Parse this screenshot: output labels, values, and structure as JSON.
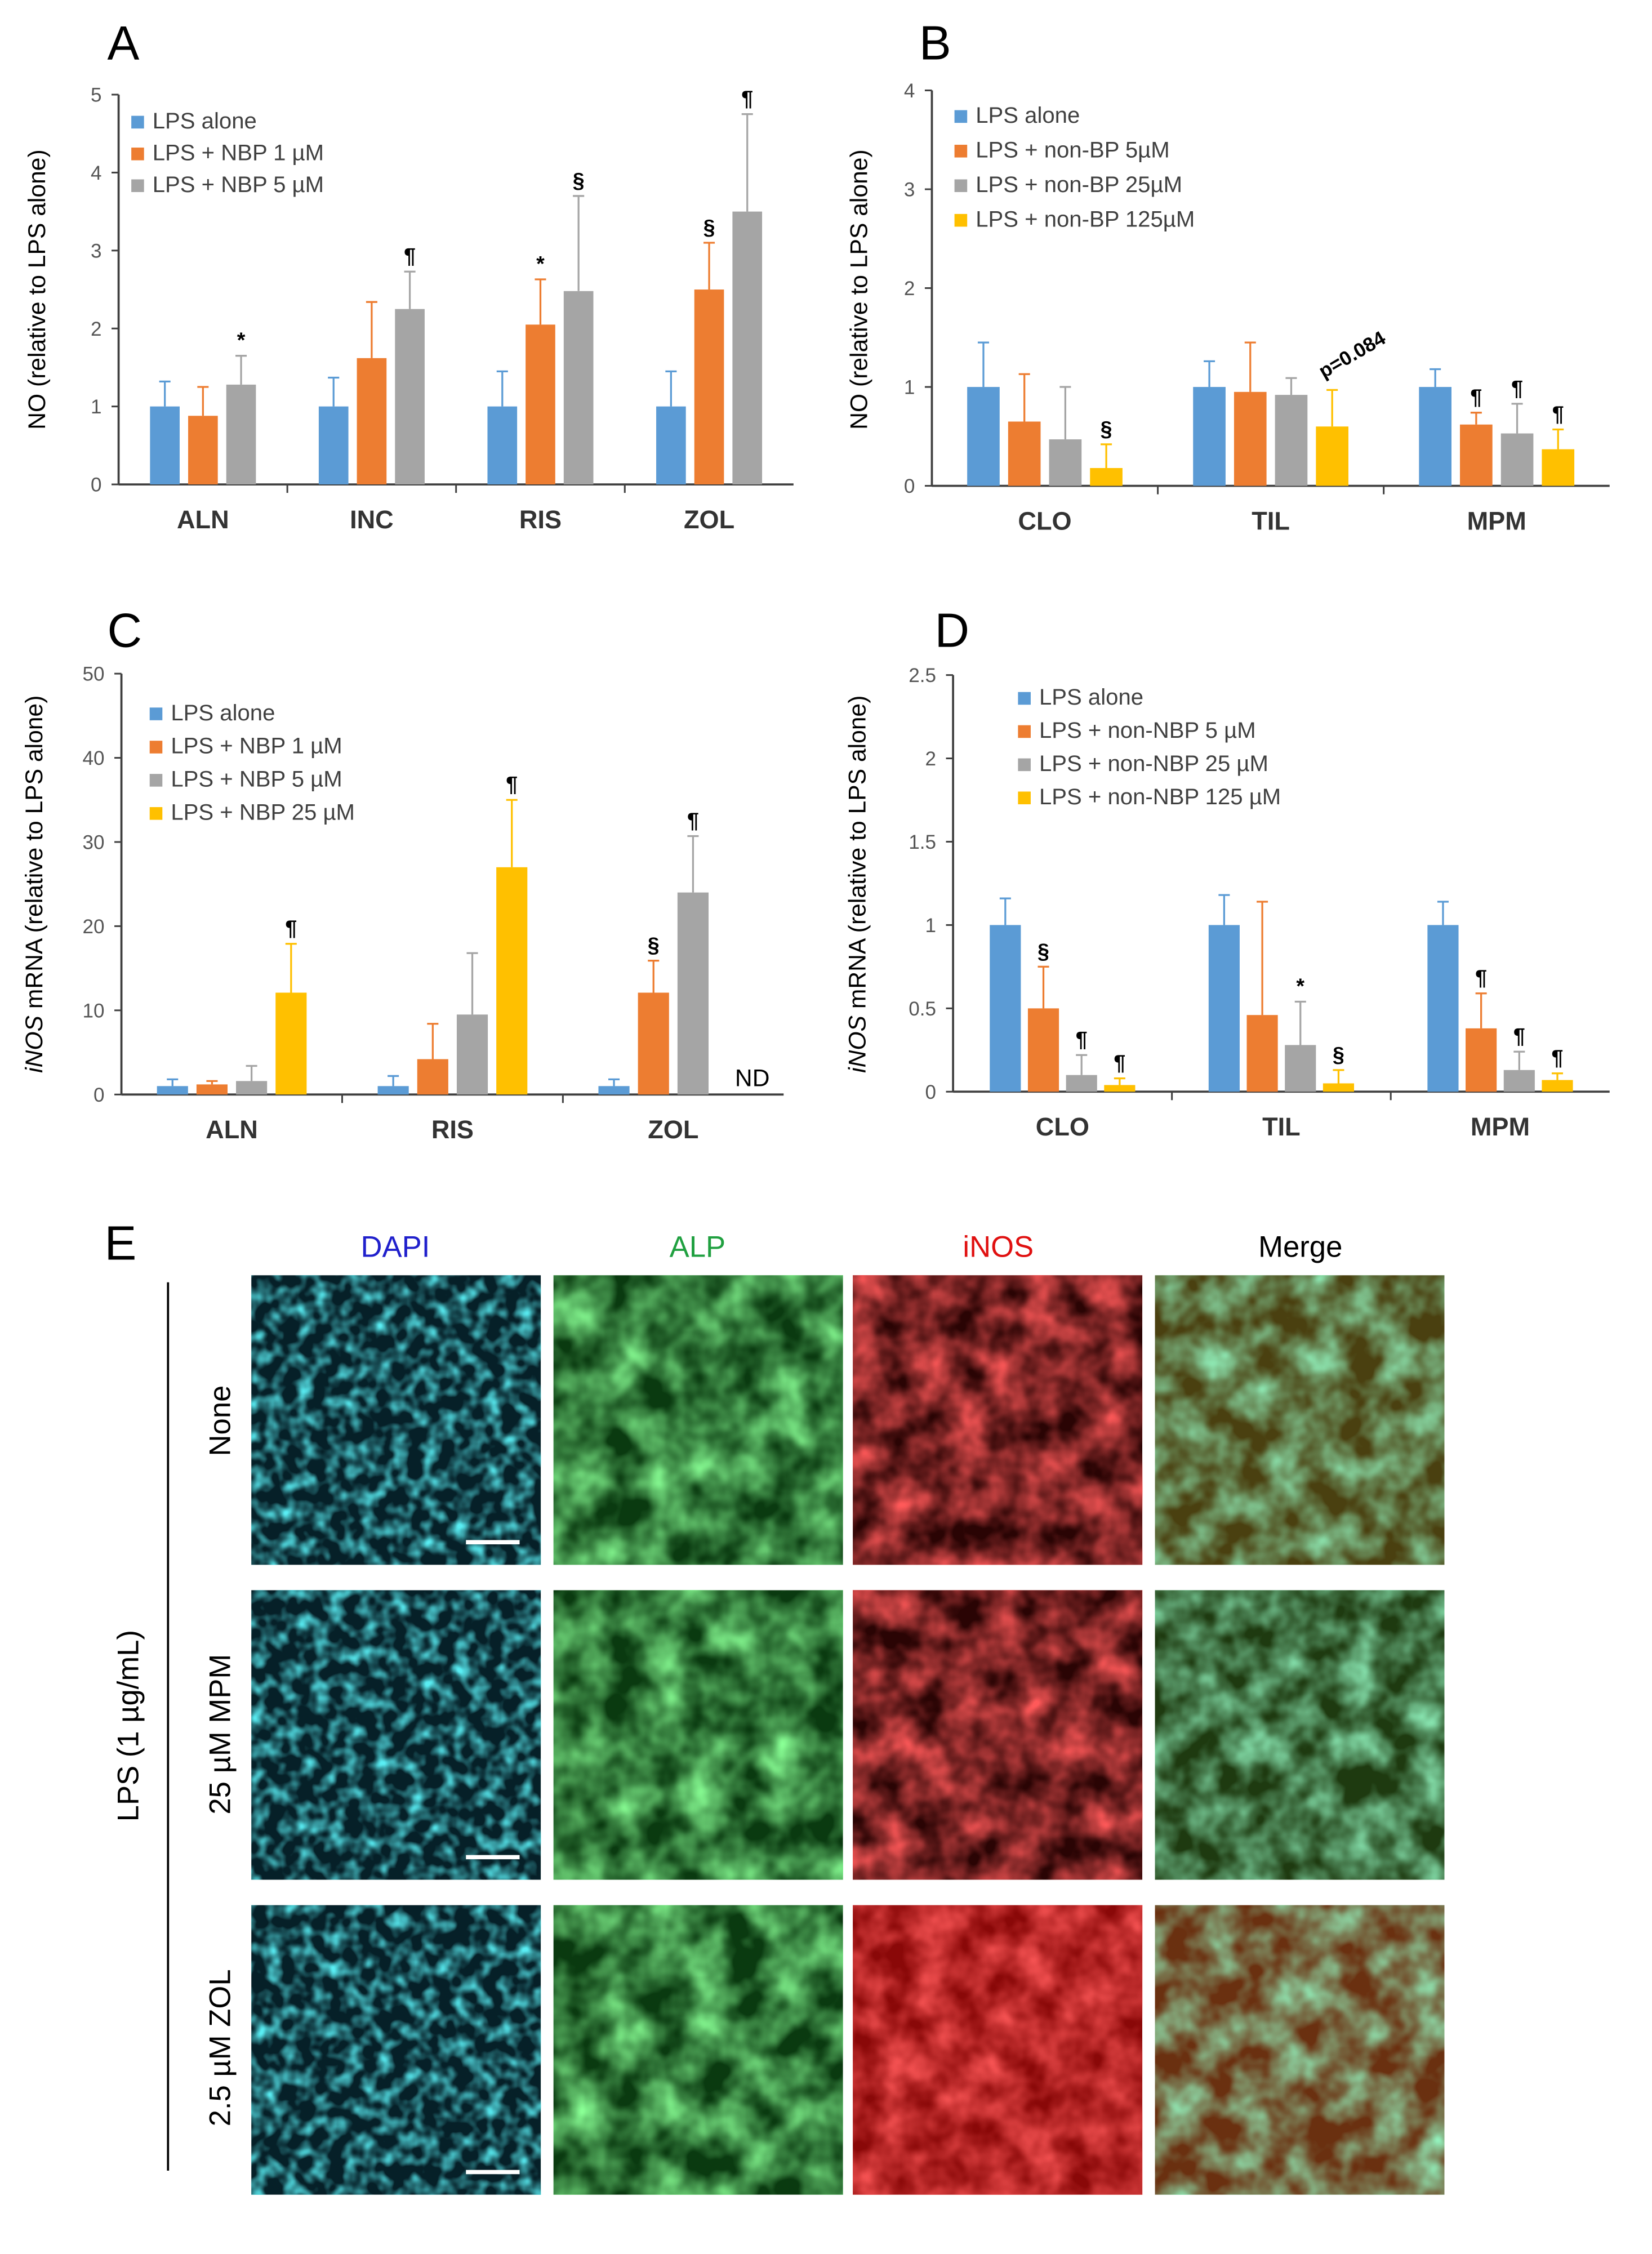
{
  "colors": {
    "blue": "#5b9bd5",
    "orange": "#ed7d31",
    "gray": "#a5a5a5",
    "yellow": "#ffc000",
    "axis": "#404040",
    "dapi_text": "#2020cc",
    "alp_text": "#20a040",
    "inos_text": "#e01010"
  },
  "chart_data": [
    {
      "id": "A",
      "panel_label": "A",
      "type": "bar",
      "ylabel": "NO  (relative to LPS alone)",
      "ylim": [
        0,
        5
      ],
      "yticks": [
        0,
        1,
        2,
        3,
        4,
        5
      ],
      "categories": [
        "ALN",
        "INC",
        "RIS",
        "ZOL"
      ],
      "legend": [
        "LPS alone",
        "LPS +  NBP  1 µM",
        "LPS +  NBP  5 µM"
      ],
      "series": [
        {
          "name": "LPS alone",
          "color": "blue",
          "values": [
            1.0,
            1.0,
            1.0,
            1.0
          ],
          "errors": [
            0.32,
            0.37,
            0.45,
            0.45
          ],
          "marks": [
            "",
            "",
            "",
            ""
          ]
        },
        {
          "name": "LPS + NBP 1 µM",
          "color": "orange",
          "values": [
            0.88,
            1.62,
            2.05,
            2.5
          ],
          "errors": [
            0.37,
            0.72,
            0.58,
            0.6
          ],
          "marks": [
            "",
            "",
            "*",
            "§"
          ]
        },
        {
          "name": "LPS + NBP 5 µM",
          "color": "gray",
          "values": [
            1.28,
            2.25,
            2.48,
            3.5
          ],
          "errors": [
            0.37,
            0.48,
            1.22,
            1.25
          ],
          "marks": [
            "*",
            "¶",
            "§",
            "¶"
          ]
        }
      ],
      "annotations": []
    },
    {
      "id": "B",
      "panel_label": "B",
      "type": "bar",
      "ylabel": "NO  (relative to LPS alone)",
      "ylim": [
        0,
        4
      ],
      "yticks": [
        0,
        1,
        2,
        3,
        4
      ],
      "categories": [
        "CLO",
        "TIL",
        "MPM"
      ],
      "legend": [
        "LPS alone",
        "LPS + non-BP  5µM",
        "LPS + non-BP 25µM",
        "LPS + non-BP 125µM"
      ],
      "series": [
        {
          "name": "LPS alone",
          "color": "blue",
          "values": [
            1.0,
            1.0,
            1.0
          ],
          "errors": [
            0.45,
            0.26,
            0.18
          ],
          "marks": [
            "",
            "",
            ""
          ]
        },
        {
          "name": "LPS + non-BP 5µM",
          "color": "orange",
          "values": [
            0.65,
            0.95,
            0.62
          ],
          "errors": [
            0.48,
            0.5,
            0.12
          ],
          "marks": [
            "",
            "",
            "¶"
          ]
        },
        {
          "name": "LPS + non-BP 25µM",
          "color": "gray",
          "values": [
            0.47,
            0.92,
            0.53
          ],
          "errors": [
            0.53,
            0.17,
            0.3
          ],
          "marks": [
            "",
            "",
            "¶"
          ]
        },
        {
          "name": "LPS + non-BP 125µM",
          "color": "yellow",
          "values": [
            0.18,
            0.6,
            0.37
          ],
          "errors": [
            0.24,
            0.37,
            0.2
          ],
          "marks": [
            "§",
            "",
            "¶"
          ]
        }
      ],
      "annotations": [
        {
          "text": "p=0.084",
          "category_index": 1,
          "series_index": 3
        }
      ]
    },
    {
      "id": "C",
      "panel_label": "C",
      "type": "bar",
      "ylabel_italic": "iNOS",
      "ylabel_rest": " mRNA (relative to LPS alone)",
      "ylim": [
        0,
        50
      ],
      "yticks": [
        0,
        10,
        20,
        30,
        40,
        50
      ],
      "categories": [
        "ALN",
        "RIS",
        "ZOL"
      ],
      "legend": [
        "LPS alone",
        "LPS +  NBP    1 µM",
        "LPS +  NBP    5 µM",
        "LPS +  NBP  25 µM"
      ],
      "series": [
        {
          "name": "LPS alone",
          "color": "blue",
          "values": [
            1.0,
            1.0,
            1.0
          ],
          "errors": [
            0.8,
            1.2,
            0.8
          ],
          "marks": [
            "",
            "",
            ""
          ]
        },
        {
          "name": "LPS + NBP 1 µM",
          "color": "orange",
          "values": [
            1.2,
            4.2,
            12.1
          ],
          "errors": [
            0.4,
            4.2,
            3.8
          ],
          "marks": [
            "",
            "",
            "§"
          ]
        },
        {
          "name": "LPS + NBP 5 µM",
          "color": "gray",
          "values": [
            1.6,
            9.5,
            24.0
          ],
          "errors": [
            1.8,
            7.3,
            6.7
          ],
          "marks": [
            "",
            "",
            "¶"
          ]
        },
        {
          "name": "LPS + NBP 25 µM",
          "color": "yellow",
          "values": [
            12.1,
            27.0,
            null
          ],
          "errors": [
            5.8,
            8.0,
            0
          ],
          "marks": [
            "¶",
            "¶",
            ""
          ]
        }
      ],
      "annotations": [
        {
          "text": "ND",
          "category_index": 2,
          "series_index": 3
        }
      ]
    },
    {
      "id": "D",
      "panel_label": "D",
      "type": "bar",
      "ylabel_italic": "iNOS",
      "ylabel_rest": " mRNA (relative to LPS alone)",
      "ylim": [
        0,
        2.5
      ],
      "yticks": [
        0,
        0.5,
        1,
        1.5,
        2,
        2.5
      ],
      "categories": [
        "CLO",
        "TIL",
        "MPM"
      ],
      "legend": [
        "LPS alone",
        "LPS +  non-NBP    5 µM",
        "LPS +  non-NBP  25 µM",
        "LPS +  non-NBP 125 µM"
      ],
      "series": [
        {
          "name": "LPS alone",
          "color": "blue",
          "values": [
            1.0,
            1.0,
            1.0
          ],
          "errors": [
            0.16,
            0.18,
            0.14
          ],
          "marks": [
            "",
            "",
            ""
          ]
        },
        {
          "name": "LPS + non-NBP 5 µM",
          "color": "orange",
          "values": [
            0.5,
            0.46,
            0.38
          ],
          "errors": [
            0.25,
            0.68,
            0.21
          ],
          "marks": [
            "§",
            "",
            "¶"
          ]
        },
        {
          "name": "LPS + non-NBP 25 µM",
          "color": "gray",
          "values": [
            0.1,
            0.28,
            0.13
          ],
          "errors": [
            0.12,
            0.26,
            0.11
          ],
          "marks": [
            "¶",
            "*",
            "¶"
          ]
        },
        {
          "name": "LPS + non-NBP 125 µM",
          "color": "yellow",
          "values": [
            0.04,
            0.05,
            0.07
          ],
          "errors": [
            0.04,
            0.08,
            0.04
          ],
          "marks": [
            "¶",
            "§",
            "¶"
          ]
        }
      ],
      "annotations": []
    }
  ],
  "panel_e": {
    "label": "E",
    "columns": [
      "DAPI",
      "ALP",
      "iNOS",
      "Merge"
    ],
    "row_group_label": "LPS (1 µg/mL)",
    "rows": [
      "None",
      "25 µM MPM",
      "2.5 µM ZOL"
    ]
  }
}
